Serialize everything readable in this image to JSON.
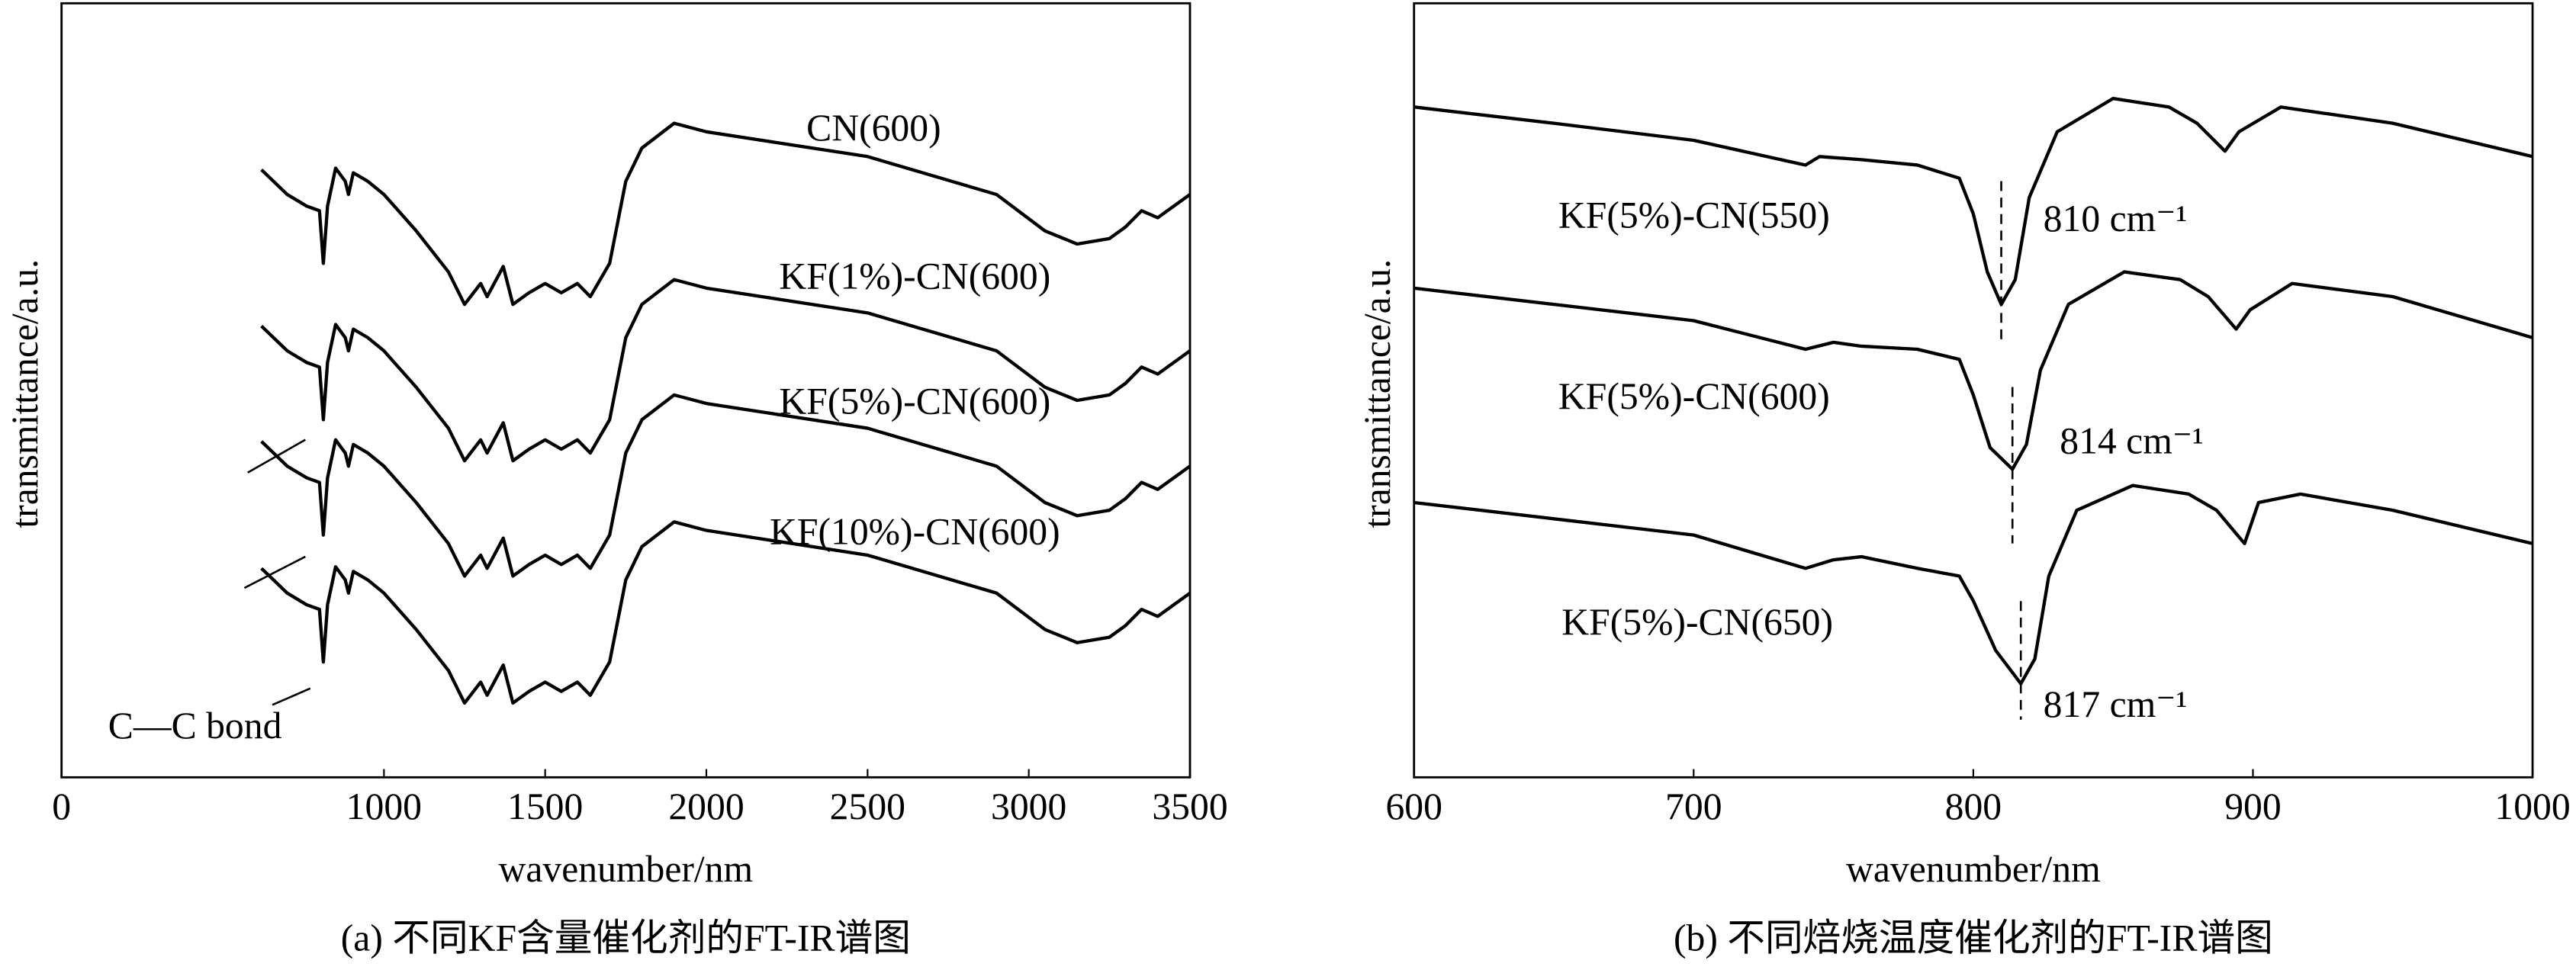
{
  "chart_data": [
    {
      "type": "line",
      "xlabel": "wavenumber/nm",
      "ylabel": "transmittance/a.u.",
      "caption": "(a) 不同KF含量催化剂的FT-IR谱图",
      "xlim": [
        0,
        3500
      ],
      "xticks": [
        0,
        1000,
        1500,
        2000,
        2500,
        3000,
        3500
      ],
      "ylim": [
        0,
        100
      ],
      "x": [
        620,
        700,
        760,
        800,
        812,
        825,
        850,
        880,
        890,
        905,
        950,
        1000,
        1100,
        1200,
        1250,
        1300,
        1320,
        1370,
        1400,
        1450,
        1500,
        1550,
        1600,
        1640,
        1700,
        1750,
        1800,
        1900,
        2000,
        2500,
        2900,
        3050,
        3150,
        3250,
        3300,
        3350,
        3400,
        3500
      ],
      "series": [
        {
          "name": "CN(600)",
          "color": "#000000",
          "values": [
            78.5,
            75.3,
            73.8,
            73.2,
            66.4,
            73.8,
            78.7,
            77.0,
            75.3,
            78.1,
            77.0,
            75.3,
            70.6,
            65.3,
            61.1,
            63.8,
            62.1,
            66.0,
            61.1,
            62.6,
            63.8,
            62.6,
            63.8,
            62.1,
            66.4,
            77.0,
            81.3,
            84.5,
            83.4,
            80.2,
            75.3,
            70.6,
            68.9,
            69.6,
            71.1,
            73.2,
            72.3,
            75.3
          ]
        },
        {
          "name": "KF(1%)-CN(600)",
          "color": "#000000",
          "values": [
            58.3,
            55.1,
            53.6,
            53.0,
            46.2,
            53.6,
            58.5,
            56.8,
            55.1,
            57.9,
            56.8,
            55.1,
            50.4,
            45.1,
            40.9,
            43.6,
            41.9,
            45.8,
            40.9,
            42.4,
            43.6,
            42.4,
            43.6,
            41.9,
            46.2,
            56.8,
            61.1,
            64.3,
            63.2,
            60.0,
            55.1,
            50.4,
            48.7,
            49.4,
            50.9,
            53.0,
            52.1,
            55.1
          ]
        },
        {
          "name": "KF(5%)-CN(600)",
          "color": "#000000",
          "values": [
            43.4,
            40.2,
            38.7,
            38.1,
            31.3,
            38.7,
            43.6,
            41.9,
            40.2,
            43.0,
            41.9,
            40.2,
            35.5,
            30.2,
            26.0,
            28.7,
            27.0,
            30.9,
            26.0,
            27.5,
            28.7,
            27.5,
            28.7,
            27.0,
            31.3,
            41.9,
            46.2,
            49.4,
            48.3,
            45.1,
            40.2,
            35.5,
            33.8,
            34.5,
            36.0,
            38.1,
            37.2,
            40.2
          ]
        },
        {
          "name": "KF(10%)-CN(600)",
          "color": "#000000",
          "values": [
            27.0,
            23.8,
            22.3,
            21.7,
            14.9,
            22.3,
            27.2,
            25.5,
            23.8,
            26.6,
            25.5,
            23.8,
            19.1,
            13.8,
            9.6,
            12.3,
            10.6,
            14.5,
            9.6,
            11.1,
            12.3,
            11.1,
            12.3,
            10.6,
            14.9,
            25.5,
            29.8,
            33.0,
            31.9,
            28.7,
            23.8,
            19.1,
            17.4,
            18.1,
            19.6,
            21.7,
            20.8,
            23.8
          ]
        }
      ],
      "annotations": [
        "C—C bond"
      ]
    },
    {
      "type": "line",
      "xlabel": "wavenumber/nm",
      "ylabel": "transmittance/a.u.",
      "caption": "(b) 不同焙烧温度催化剂的FT-IR谱图",
      "xlim": [
        600,
        1000
      ],
      "xticks": [
        600,
        700,
        800,
        900,
        1000
      ],
      "ylim": [
        0,
        100
      ],
      "series": [
        {
          "name": "KF(5%)-CN(550)",
          "color": "#000000",
          "x": [
            600,
            650,
            700,
            740,
            745,
            760,
            780,
            795,
            800,
            805,
            810,
            815,
            820,
            830,
            850,
            870,
            880,
            890,
            895,
            910,
            950,
            1000
          ],
          "values": [
            86.6,
            84.5,
            82.3,
            79.1,
            80.2,
            79.8,
            79.1,
            77.4,
            72.8,
            65.3,
            61.1,
            64.3,
            74.9,
            83.4,
            87.7,
            86.6,
            84.5,
            80.9,
            83.4,
            86.6,
            84.5,
            80.2
          ]
        },
        {
          "name": "KF(5%)-CN(600)",
          "color": "#000000",
          "x": [
            600,
            650,
            700,
            740,
            750,
            760,
            780,
            795,
            800,
            806,
            814,
            819,
            824,
            834,
            854,
            874,
            884,
            894,
            899,
            914,
            950,
            1000
          ],
          "values": [
            63.2,
            61.1,
            59.0,
            55.3,
            56.2,
            55.7,
            55.3,
            54.0,
            49.4,
            42.6,
            39.8,
            43.0,
            52.6,
            61.1,
            65.3,
            64.3,
            62.1,
            57.9,
            60.4,
            63.8,
            62.1,
            56.8
          ]
        },
        {
          "name": "KF(5%)-CN(650)",
          "color": "#000000",
          "x": [
            600,
            650,
            700,
            740,
            750,
            760,
            780,
            795,
            800,
            808,
            817,
            822,
            827,
            837,
            857,
            877,
            887,
            897,
            902,
            917,
            950,
            1000
          ],
          "values": [
            35.5,
            33.4,
            31.3,
            27.0,
            28.1,
            28.5,
            27.0,
            26.0,
            22.8,
            16.4,
            12.1,
            15.3,
            26.0,
            34.5,
            37.7,
            36.6,
            34.5,
            30.2,
            35.5,
            36.6,
            34.5,
            30.2
          ]
        }
      ],
      "markers": [
        {
          "x": 810,
          "label": "810  cm⁻¹"
        },
        {
          "x": 814,
          "label": "814 cm⁻¹"
        },
        {
          "x": 817,
          "label": "817 cm⁻¹"
        }
      ]
    }
  ]
}
